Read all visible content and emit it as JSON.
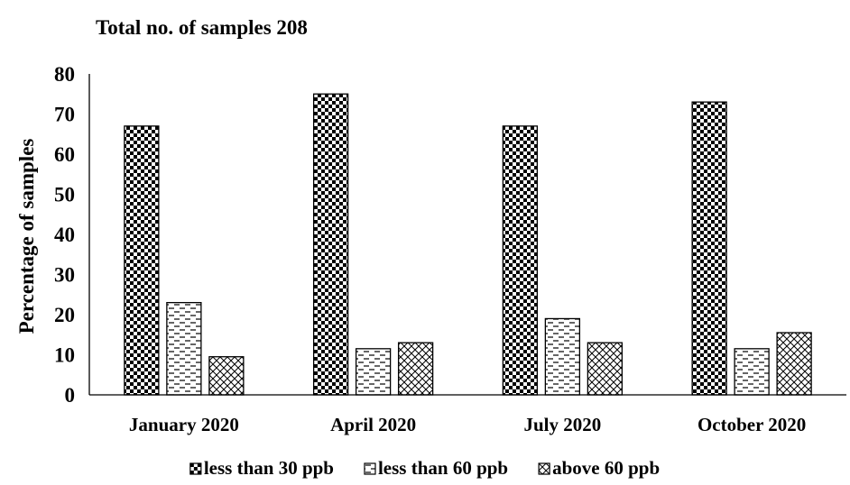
{
  "chart_data": {
    "type": "bar",
    "title": "Total no. of samples 208",
    "xlabel": "",
    "ylabel": "Percentage of samples",
    "ylim": [
      0,
      80
    ],
    "yticks": [
      0,
      10,
      20,
      30,
      40,
      50,
      60,
      70,
      80
    ],
    "grid": false,
    "legend_position": "bottom",
    "categories": [
      "January 2020",
      "April 2020",
      "July 2020",
      "October 2020"
    ],
    "series": [
      {
        "name": "less than 30 ppb",
        "pattern": "checker",
        "values": [
          67,
          75,
          67,
          73
        ]
      },
      {
        "name": "less than 60 ppb",
        "pattern": "dashes",
        "values": [
          23,
          11.5,
          19,
          11.5
        ]
      },
      {
        "name": "above 60  ppb",
        "pattern": "crosshatch",
        "values": [
          9.5,
          13,
          13,
          15.5
        ]
      }
    ],
    "colors": {
      "ink": "#000000",
      "background": "#ffffff"
    }
  }
}
